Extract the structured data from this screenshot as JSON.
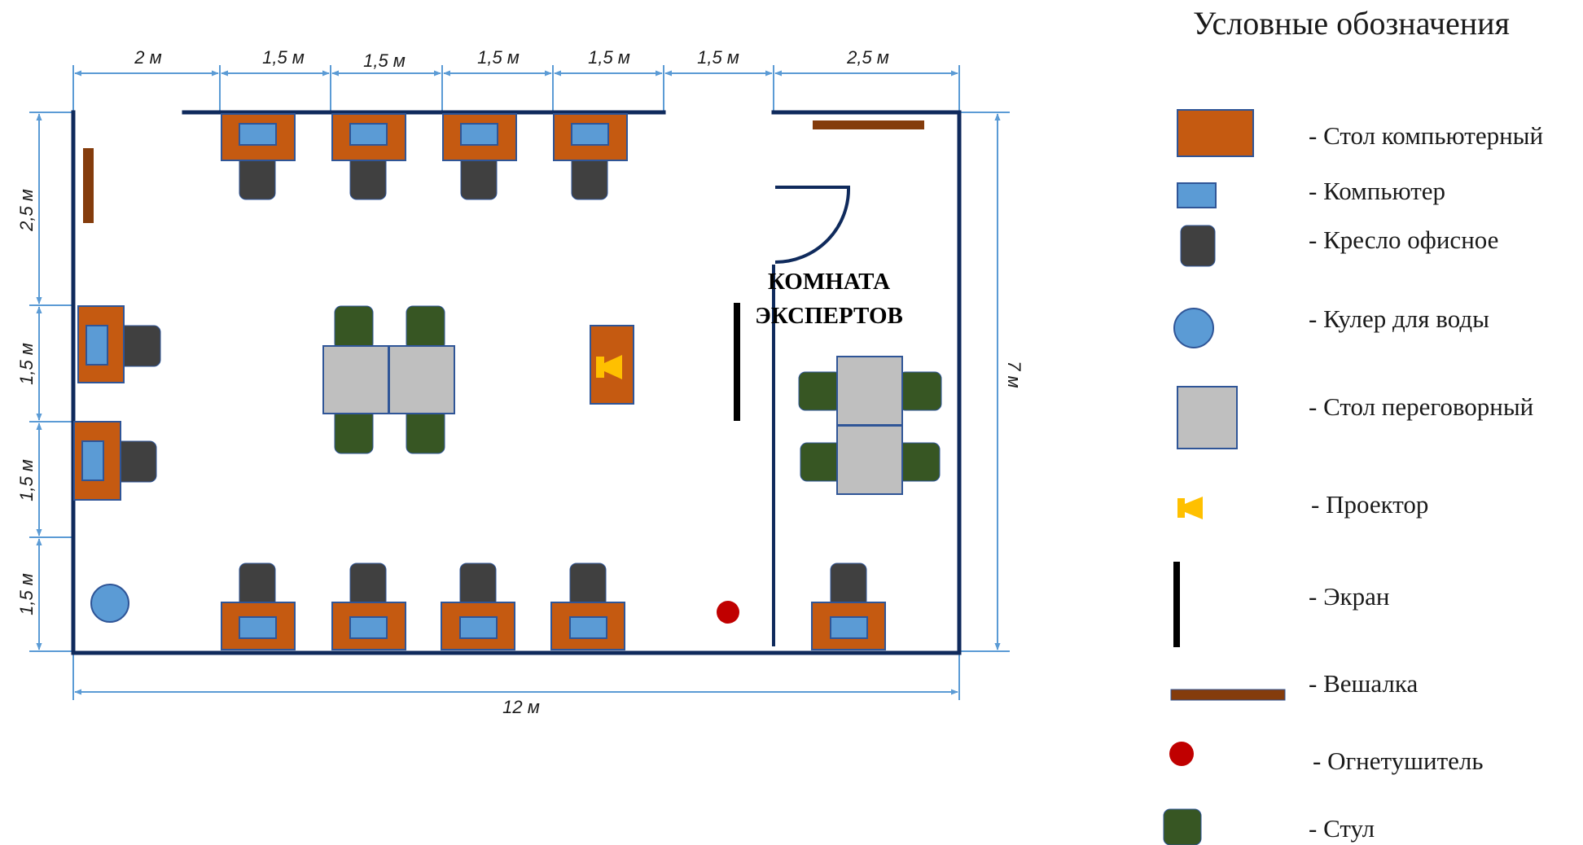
{
  "dimensions": {
    "top": [
      "2 м",
      "1,5 м",
      "1,5 м",
      "1,5 м",
      "1,5 м",
      "1,5 м",
      "2,5 м"
    ],
    "left": [
      "2,5 м",
      "1,5 м",
      "1,5 м",
      "1,5 м"
    ],
    "right": "7 м",
    "bottom": "12 м"
  },
  "room_label": {
    "line1": "КОМНАТА",
    "line2": "ЭКСПЕРТОВ"
  },
  "legend": {
    "title": "Условные обозначения",
    "items": [
      {
        "icon": "computer-desk-icon",
        "label": "- Стол компьютерный"
      },
      {
        "icon": "computer-icon",
        "label": "- Компьютер"
      },
      {
        "icon": "office-chair-icon",
        "label": "- Кресло офисное"
      },
      {
        "icon": "water-cooler-icon",
        "label": "- Кулер для воды"
      },
      {
        "icon": "meeting-table-icon",
        "label": "- Стол переговорный"
      },
      {
        "icon": "projector-icon",
        "label": "- Проектор"
      },
      {
        "icon": "screen-icon",
        "label": "- Экран"
      },
      {
        "icon": "coat-rack-icon",
        "label": "- Вешалка"
      },
      {
        "icon": "fire-extinguisher-icon",
        "label": "- Огнетушитель"
      },
      {
        "icon": "chair-icon",
        "label": "- Стул"
      }
    ]
  },
  "colors": {
    "wall": "#0f2a5c",
    "dimension": "#5b9bd5",
    "desk": "#c55a11",
    "computer": "#5b9bd5",
    "office_chair": "#404040",
    "meeting_table": "#bfbfbf",
    "chair": "#375623",
    "projector": "#ffc000",
    "coat_rack": "#843c0c",
    "extinguisher": "#c00000"
  }
}
